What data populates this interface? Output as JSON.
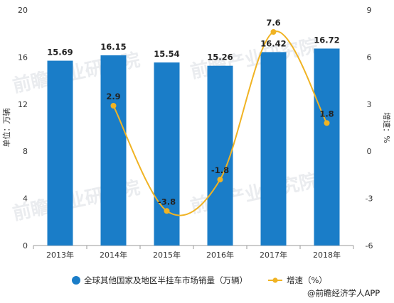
{
  "chart_data": {
    "type": "bar",
    "categories": [
      "2013年",
      "2014年",
      "2015年",
      "2016年",
      "2017年",
      "2018年"
    ],
    "series": [
      {
        "name": "全球其他国家及地区半挂车市场销量（万辆）",
        "type": "bar",
        "axis": "left",
        "values": [
          15.69,
          16.15,
          15.54,
          15.26,
          16.42,
          16.72
        ],
        "labels": [
          "15.69",
          "16.15",
          "15.54",
          "15.26",
          "16.42",
          "16.72"
        ],
        "color": "#1a7dc8"
      },
      {
        "name": "增速（%）",
        "type": "line",
        "axis": "right",
        "values": [
          null,
          2.9,
          -3.8,
          -1.8,
          7.6,
          1.8
        ],
        "labels": [
          "",
          "2.9",
          "-3.8",
          "-1.8",
          "7.6",
          "1.8"
        ],
        "color": "#f0b323"
      }
    ],
    "ylabel_left": "单位：万辆",
    "ylabel_right": "增速：%",
    "ylim_left": [
      0,
      20
    ],
    "yticks_left": [
      "0",
      "4",
      "8",
      "12",
      "16",
      "20"
    ],
    "ylim_right": [
      -6,
      9
    ],
    "yticks_right": [
      "-6",
      "-3",
      "0",
      "3",
      "6",
      "9"
    ],
    "grid": false,
    "legend_position": "bottom"
  },
  "source": "@前瞻经济学人APP",
  "watermark": "前瞻产业研究院"
}
